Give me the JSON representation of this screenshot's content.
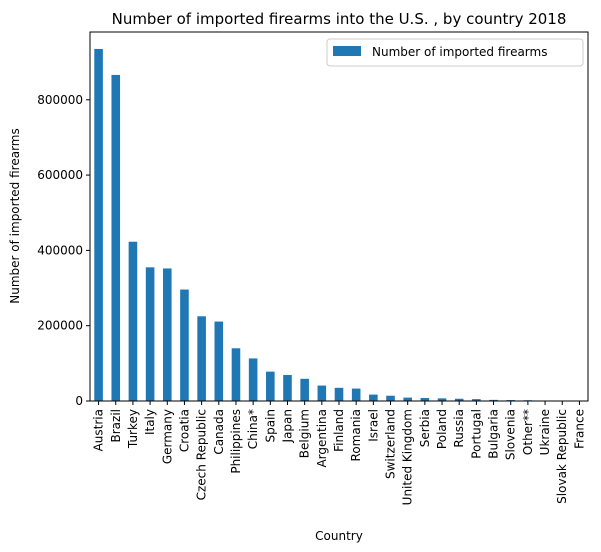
{
  "chart_data": {
    "type": "bar",
    "title": "Number of imported firearms into the U.S. , by country 2018",
    "xlabel": "Country",
    "ylabel": "Number of imported firearms",
    "ylim": [
      0,
      980000
    ],
    "yticks": [
      0,
      200000,
      400000,
      600000,
      800000
    ],
    "ytick_labels": [
      "0",
      "200000",
      "400000",
      "600000",
      "800000"
    ],
    "grid": false,
    "legend_position": "top-right",
    "categories": [
      "Austria",
      "Brazil",
      "Turkey",
      "Italy",
      "Germany",
      "Croatia",
      "Czech Republic",
      "Canada",
      "Philippines",
      "China*",
      "Spain",
      "Japan",
      "Belgium",
      "Argentina",
      "Finland",
      "Romania",
      "Israel",
      "Switzerland",
      "United Kingdom",
      "Serbia",
      "Poland",
      "Russia",
      "Portugal",
      "Bulgaria",
      "Slovenia",
      "Other**",
      "Ukraine",
      "Slovak Republic",
      "France"
    ],
    "series": [
      {
        "name": "Number of imported firearms",
        "color": "#1f77b4",
        "values": [
          935000,
          866000,
          423000,
          355000,
          352000,
          296000,
          225000,
          211000,
          140000,
          113000,
          78000,
          69000,
          59000,
          41000,
          35000,
          33000,
          17000,
          14000,
          9000,
          8000,
          7000,
          6000,
          5000,
          3000,
          2500,
          2000,
          1000,
          500,
          300
        ]
      }
    ]
  }
}
